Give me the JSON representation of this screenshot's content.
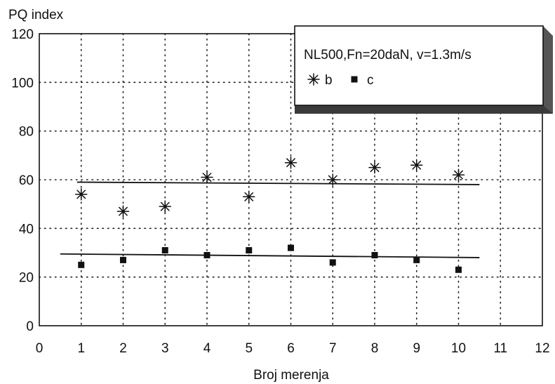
{
  "chart_data": {
    "type": "scatter",
    "ylabel": "PQ index",
    "xlabel": "Broj merenja",
    "xlim": [
      0,
      12
    ],
    "ylim": [
      0,
      120
    ],
    "xticks": [
      "0",
      "1",
      "2",
      "3",
      "4",
      "5",
      "6",
      "7",
      "8",
      "9",
      "10",
      "11",
      "12"
    ],
    "yticks": [
      "0",
      "20",
      "40",
      "60",
      "80",
      "100",
      "120"
    ],
    "grid": "dotted",
    "legend": {
      "position": "top-right",
      "title": "NL500,Fn=20daN, v=1.3m/s",
      "entries": [
        "b",
        "c"
      ]
    },
    "series": [
      {
        "name": "b",
        "marker": "asterisk",
        "x": [
          1,
          2,
          3,
          4,
          5,
          6,
          7,
          8,
          9,
          10
        ],
        "y": [
          54,
          47,
          49,
          61,
          53,
          67,
          60,
          65,
          66,
          62
        ],
        "trend": {
          "x": [
            0.9,
            10.5
          ],
          "y": [
            59,
            58
          ]
        }
      },
      {
        "name": "c",
        "marker": "square",
        "x": [
          1,
          2,
          3,
          4,
          5,
          6,
          7,
          8,
          9,
          10
        ],
        "y": [
          25,
          27,
          31,
          29,
          31,
          32,
          26,
          29,
          27,
          23
        ],
        "trend": {
          "x": [
            0.5,
            10.5
          ],
          "y": [
            29.5,
            28
          ]
        }
      }
    ]
  }
}
